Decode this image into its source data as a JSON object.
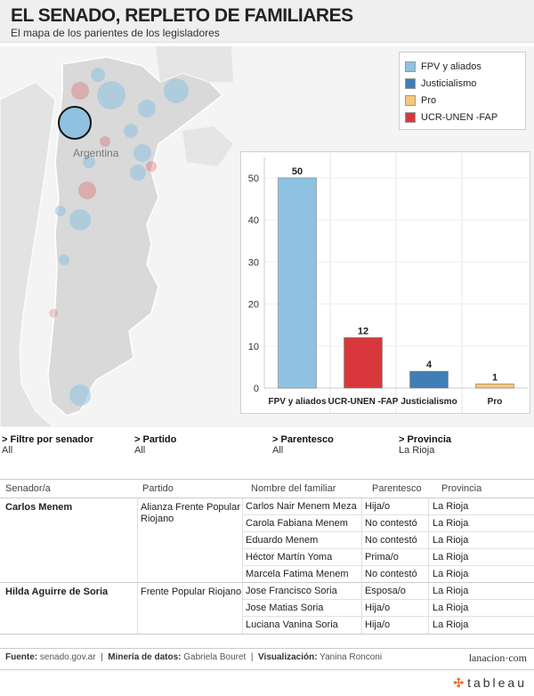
{
  "header": {
    "title": "EL SENADO, REPLETO DE FAMILIARES",
    "subtitle": "El mapa de los parientes de los legisladores"
  },
  "map": {
    "country_label": "Argentina"
  },
  "legend": [
    {
      "label": "FPV y aliados",
      "color": "#8ec2e0"
    },
    {
      "label": "Justicialismo",
      "color": "#3f7fb5"
    },
    {
      "label": "Pro",
      "color": "#f6c77b"
    },
    {
      "label": "UCR-UNEN -FAP",
      "color": "#d8383b"
    }
  ],
  "chart_data": {
    "type": "bar",
    "categories": [
      "FPV y aliados",
      "UCR-UNEN -FAP",
      "Justicialismo",
      "Pro"
    ],
    "values": [
      50,
      12,
      4,
      1
    ],
    "colors": [
      "#8ec2e0",
      "#d8383b",
      "#3f7fb5",
      "#f6c77b"
    ],
    "yticks": [
      0,
      10,
      20,
      30,
      40,
      50
    ],
    "ylim": [
      0,
      54
    ],
    "grid": true
  },
  "filters": [
    {
      "label": "> Filtre por senador",
      "value": "All"
    },
    {
      "label": "> Partido",
      "value": "All"
    },
    {
      "label": "> Parentesco",
      "value": "All"
    },
    {
      "label": "> Provincia",
      "value": "La Rioja"
    }
  ],
  "table": {
    "headers": [
      "Senador/a",
      "Partido",
      "Nombre del familiar",
      "Parentesco",
      "Provincia"
    ],
    "groups": [
      {
        "senator": "Carlos Menem",
        "party": "Alianza Frente Popular Riojano",
        "rows": [
          {
            "familiar": "Carlos Nair Menem Meza",
            "parentesco": "Hija/o",
            "provincia": "La Rioja"
          },
          {
            "familiar": "Carola Fabiana Menem",
            "parentesco": "No contestó",
            "provincia": "La Rioja"
          },
          {
            "familiar": "Eduardo Menem",
            "parentesco": "No contestó",
            "provincia": "La Rioja"
          },
          {
            "familiar": "Héctor Martín Yoma",
            "parentesco": "Prima/o",
            "provincia": "La Rioja"
          },
          {
            "familiar": "Marcela Fatima Menem",
            "parentesco": "No contestó",
            "provincia": "La Rioja"
          }
        ]
      },
      {
        "senator": "Hilda Aguirre de Soria",
        "party": "Frente Popular Riojano",
        "rows": [
          {
            "familiar": "Jose Francisco Soria",
            "parentesco": "Esposa/o",
            "provincia": "La Rioja"
          },
          {
            "familiar": "Jose Matias Soria",
            "parentesco": "Hija/o",
            "provincia": "La Rioja"
          },
          {
            "familiar": "Luciana Vanina Soria",
            "parentesco": "Hija/o",
            "provincia": "La Rioja"
          }
        ]
      }
    ]
  },
  "footer": {
    "fuente_label": "Fuente:",
    "fuente": "senado.gov.ar",
    "mineria_label": "Minería de datos:",
    "mineria": "Gabriela Bouret",
    "visual_label": "Visualización:",
    "visual": "Yanina Ronconi",
    "brand": "lanacion·com"
  },
  "tableau": {
    "logo": "tableau",
    "icon": "✣"
  }
}
